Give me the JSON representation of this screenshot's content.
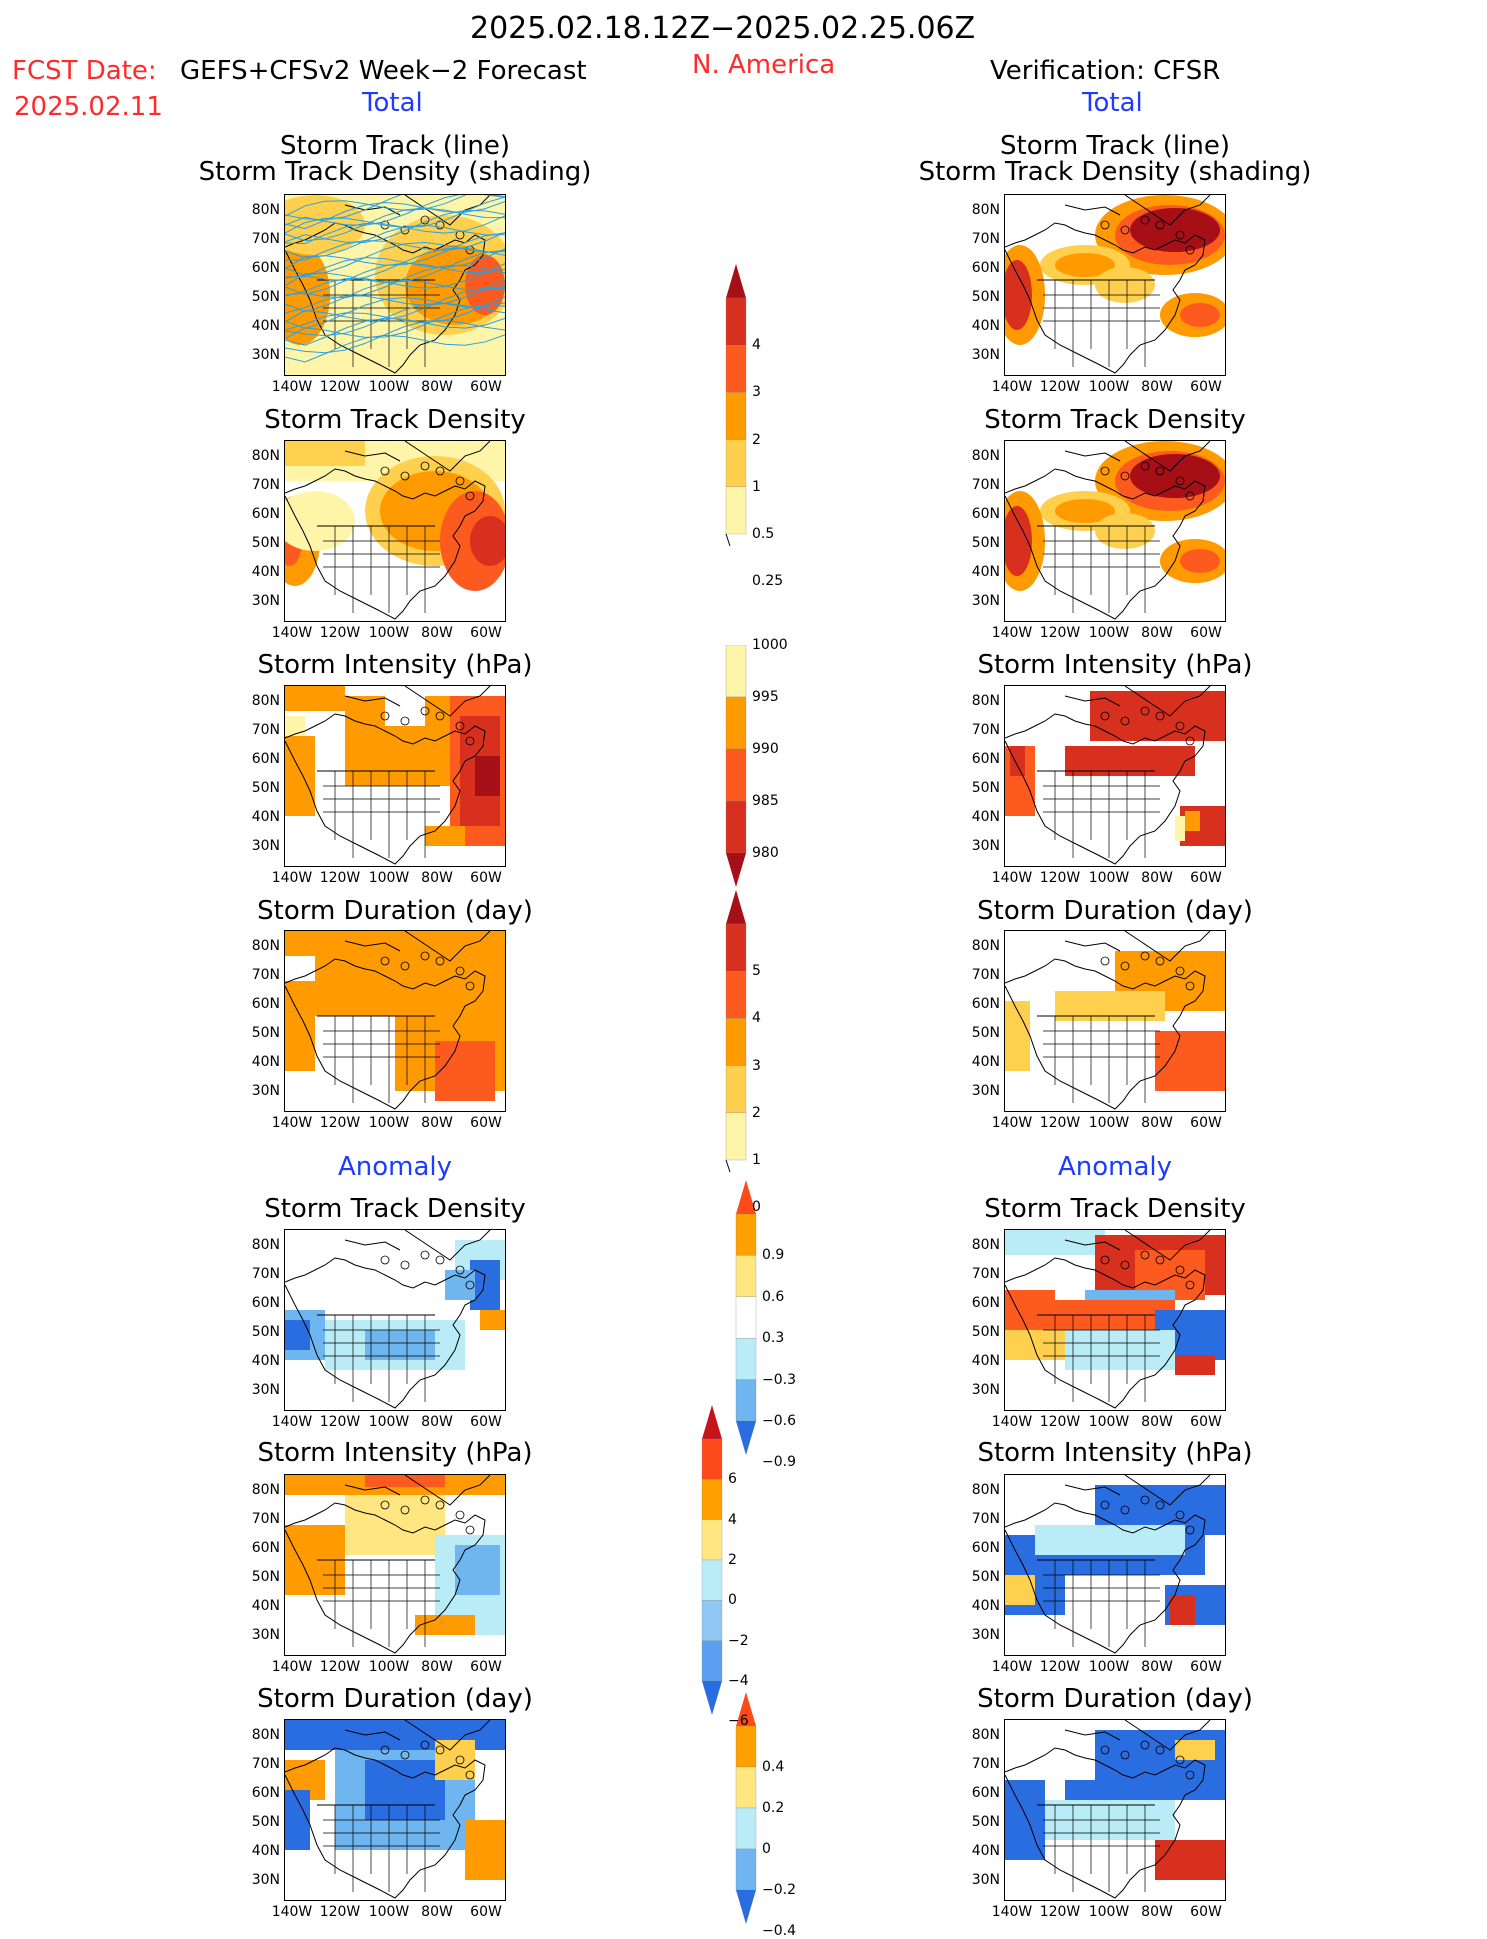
{
  "header": {
    "date_range": "2025.02.18.12Z−2025.02.25.06Z",
    "fcst_label": "FCST Date:",
    "fcst_model": "GEFS+CFSv2 Week−2 Forecast",
    "fcst_date": "2025.02.11",
    "region": "N. America",
    "verification": "Verification: CFSR"
  },
  "sections": {
    "total": "Total",
    "anomaly": "Anomaly"
  },
  "axis": {
    "lat_labels": [
      "80N",
      "70N",
      "60N",
      "50N",
      "40N",
      "30N"
    ],
    "lon_labels": [
      "140W",
      "120W",
      "100W",
      "80W",
      "60W"
    ]
  },
  "panels": {
    "track_line_title1": "Storm Track (line)",
    "track_line_title2": "Storm Track Density (shading)",
    "density_title": "Storm Track Density",
    "intensity_title": "Storm Intensity (hPa)",
    "duration_title": "Storm Duration (day)"
  },
  "colorbars": {
    "density": {
      "labels": [
        "4",
        "3",
        "2",
        "1",
        "0.5",
        "0.25"
      ],
      "colors": [
        "#a50f15",
        "#d7301f",
        "#fc5a1f",
        "#ff9a00",
        "#ffd04d",
        "#fff5a8"
      ]
    },
    "intensity": {
      "labels": [
        "1000",
        "995",
        "990",
        "985",
        "980"
      ],
      "colors": [
        "#fff5a8",
        "#ff9a00",
        "#fc5a1f",
        "#d7301f",
        "#a50f15"
      ]
    },
    "duration": {
      "labels": [
        "5",
        "4",
        "3",
        "2",
        "1",
        "0"
      ],
      "colors": [
        "#a50f15",
        "#d7301f",
        "#fc5a1f",
        "#ff9a00",
        "#ffd04d",
        "#fff5a8"
      ]
    },
    "anom_density": {
      "labels": [
        "0.9",
        "0.6",
        "0.3",
        "−0.3",
        "−0.6",
        "−0.9"
      ],
      "colors": [
        "#fc4a1a",
        "#ffa000",
        "#ffe680",
        "#ffffff",
        "#b9ecf7",
        "#6fb5f0",
        "#2a6de0"
      ]
    },
    "anom_intensity": {
      "labels": [
        "6",
        "4",
        "2",
        "0",
        "−2",
        "−4",
        "−6"
      ],
      "colors": [
        "#c6141c",
        "#fc4a1a",
        "#ffa000",
        "#ffe680",
        "#b9ecf7",
        "#8fc8f5",
        "#5b9ff0",
        "#2a6de0"
      ]
    },
    "anom_duration": {
      "labels": [
        "0.4",
        "0.2",
        "0",
        "−0.2",
        "−0.4"
      ],
      "colors": [
        "#fc4a1a",
        "#ffa000",
        "#ffe680",
        "#b9ecf7",
        "#6fb5f0",
        "#2a6de0"
      ]
    }
  },
  "colors": {
    "title_red": "#ff2a2a",
    "section_blue": "#1e3cff",
    "track_line": "#2aa0e0"
  }
}
